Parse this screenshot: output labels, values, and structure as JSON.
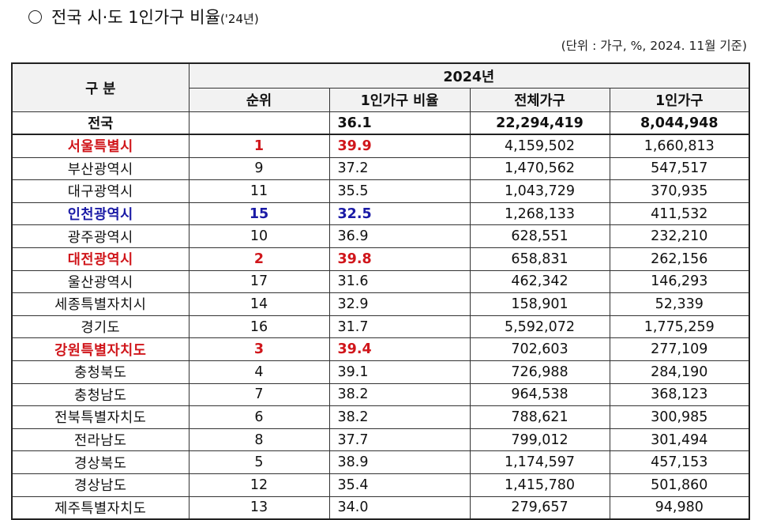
{
  "title": {
    "bullet_icon": "circle-icon",
    "text": "전국 시·도 1인가구 비율",
    "suffix": "('24년)"
  },
  "unit_note": "(단위 : 가구, %, 2024. 11월 기준)",
  "colors": {
    "highlight_high": "#d0161b",
    "highlight_low": "#1a1aa6",
    "header_bg": "#f2f2f2"
  },
  "table": {
    "header": {
      "category": "구 분",
      "year_group": "2024년",
      "columns": [
        "순위",
        "1인가구 비율",
        "전체가구",
        "1인가구"
      ]
    },
    "total": {
      "region": "전국",
      "rank": "",
      "ratio": "36.1",
      "total_households": "22,294,419",
      "single_households": "8,044,948"
    },
    "rows": [
      {
        "region": "서울특별시",
        "rank": "1",
        "ratio": "39.9",
        "total_households": "4,159,502",
        "single_households": "1,660,813",
        "highlight": "red"
      },
      {
        "region": "부산광역시",
        "rank": "9",
        "ratio": "37.2",
        "total_households": "1,470,562",
        "single_households": "547,517",
        "highlight": ""
      },
      {
        "region": "대구광역시",
        "rank": "11",
        "ratio": "35.5",
        "total_households": "1,043,729",
        "single_households": "370,935",
        "highlight": ""
      },
      {
        "region": "인천광역시",
        "rank": "15",
        "ratio": "32.5",
        "total_households": "1,268,133",
        "single_households": "411,532",
        "highlight": "blue"
      },
      {
        "region": "광주광역시",
        "rank": "10",
        "ratio": "36.9",
        "total_households": "628,551",
        "single_households": "232,210",
        "highlight": ""
      },
      {
        "region": "대전광역시",
        "rank": "2",
        "ratio": "39.8",
        "total_households": "658,831",
        "single_households": "262,156",
        "highlight": "red"
      },
      {
        "region": "울산광역시",
        "rank": "17",
        "ratio": "31.6",
        "total_households": "462,342",
        "single_households": "146,293",
        "highlight": ""
      },
      {
        "region": "세종특별자치시",
        "rank": "14",
        "ratio": "32.9",
        "total_households": "158,901",
        "single_households": "52,339",
        "highlight": ""
      },
      {
        "region": "경기도",
        "rank": "16",
        "ratio": "31.7",
        "total_households": "5,592,072",
        "single_households": "1,775,259",
        "highlight": ""
      },
      {
        "region": "강원특별자치도",
        "rank": "3",
        "ratio": "39.4",
        "total_households": "702,603",
        "single_households": "277,109",
        "highlight": "red"
      },
      {
        "region": "충청북도",
        "rank": "4",
        "ratio": "39.1",
        "total_households": "726,988",
        "single_households": "284,190",
        "highlight": ""
      },
      {
        "region": "충청남도",
        "rank": "7",
        "ratio": "38.2",
        "total_households": "964,538",
        "single_households": "368,123",
        "highlight": ""
      },
      {
        "region": "전북특별자치도",
        "rank": "6",
        "ratio": "38.2",
        "total_households": "788,621",
        "single_households": "300,985",
        "highlight": ""
      },
      {
        "region": "전라남도",
        "rank": "8",
        "ratio": "37.7",
        "total_households": "799,012",
        "single_households": "301,494",
        "highlight": ""
      },
      {
        "region": "경상북도",
        "rank": "5",
        "ratio": "38.9",
        "total_households": "1,174,597",
        "single_households": "457,153",
        "highlight": ""
      },
      {
        "region": "경상남도",
        "rank": "12",
        "ratio": "35.4",
        "total_households": "1,415,780",
        "single_households": "501,860",
        "highlight": ""
      },
      {
        "region": "제주특별자치도",
        "rank": "13",
        "ratio": "34.0",
        "total_households": "279,657",
        "single_households": "94,980",
        "highlight": ""
      }
    ]
  }
}
